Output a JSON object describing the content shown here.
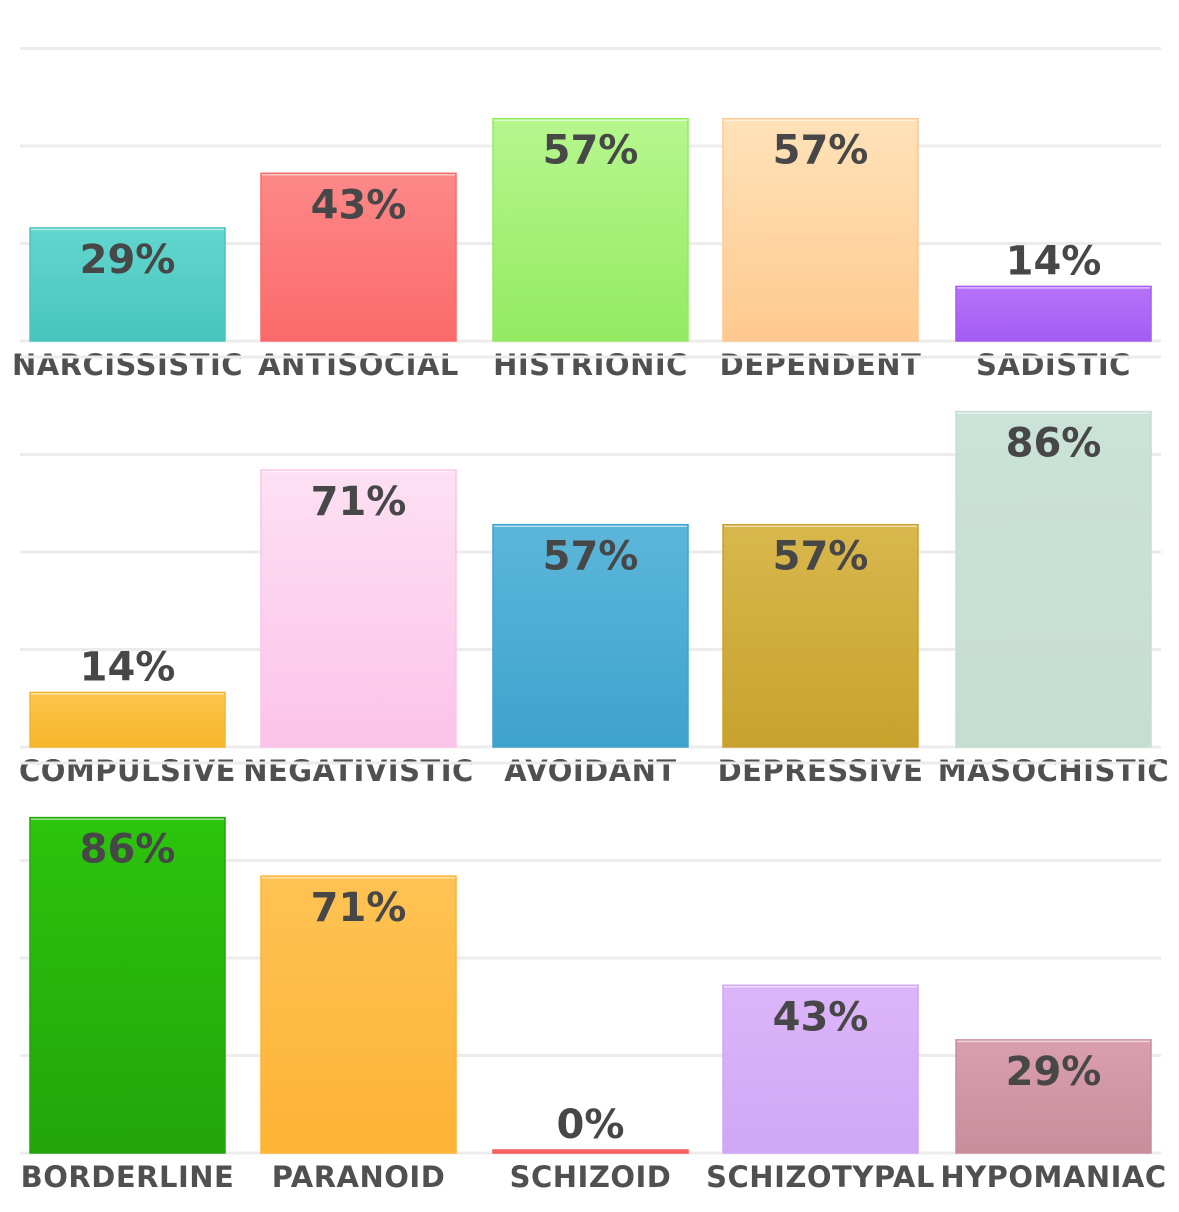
{
  "chart_data": [
    {
      "type": "bar",
      "title": "",
      "xlabel": "",
      "ylabel": "",
      "ylim": [
        0,
        100
      ],
      "grid": true,
      "categories": [
        "NARCISSISTIC",
        "ANTISOCIAL",
        "HISTRIONIC",
        "DEPENDENT",
        "SADISTIC"
      ],
      "values": [
        29,
        43,
        57,
        57,
        14
      ],
      "value_labels": [
        "29%",
        "43%",
        "57%",
        "57%",
        "14%"
      ],
      "colors": [
        [
          "#62d6cf",
          "#48c5bd"
        ],
        [
          "#fd8888",
          "#fb6a6a"
        ],
        [
          "#b6f78e",
          "#93ea61"
        ],
        [
          "#ffe2b9",
          "#ffc98f"
        ],
        [
          "#b673f9",
          "#a45cf4"
        ]
      ]
    },
    {
      "type": "bar",
      "title": "",
      "xlabel": "",
      "ylabel": "",
      "ylim": [
        0,
        100
      ],
      "grid": true,
      "categories": [
        "COMPULSIVE",
        "NEGATIVISTIC",
        "AVOIDANT",
        "DEPRESSIVE",
        "MASOCHISTIC"
      ],
      "values": [
        14,
        71,
        57,
        57,
        86
      ],
      "value_labels": [
        "14%",
        "71%",
        "57%",
        "57%",
        "86%"
      ],
      "colors": [
        [
          "#fcc54a",
          "#f7b52c"
        ],
        [
          "#fde0f3",
          "#fbc3e9"
        ],
        [
          "#5cb6da",
          "#3ea3cc"
        ],
        [
          "#d8b74c",
          "#c9a22e"
        ],
        [
          "#cbe2d8",
          "#c6ddd2"
        ]
      ]
    },
    {
      "type": "bar",
      "title": "",
      "xlabel": "",
      "ylabel": "",
      "ylim": [
        0,
        100
      ],
      "grid": true,
      "categories": [
        "BORDERLINE",
        "PARANOID",
        "SCHIZOID",
        "SCHIZOTYPAL",
        "HYPOMANIAC"
      ],
      "values": [
        86,
        71,
        0,
        43,
        29
      ],
      "value_labels": [
        "86%",
        "71%",
        "0%",
        "43%",
        "29%"
      ],
      "colors": [
        [
          "#2cc40d",
          "#22a50a"
        ],
        [
          "#ffc353",
          "#fdb335"
        ],
        [
          "#ff6d6d",
          "#f55a5a"
        ],
        [
          "#dcb5fa",
          "#cfa7f5"
        ],
        [
          "#d99fae",
          "#c98d9c"
        ]
      ]
    }
  ]
}
